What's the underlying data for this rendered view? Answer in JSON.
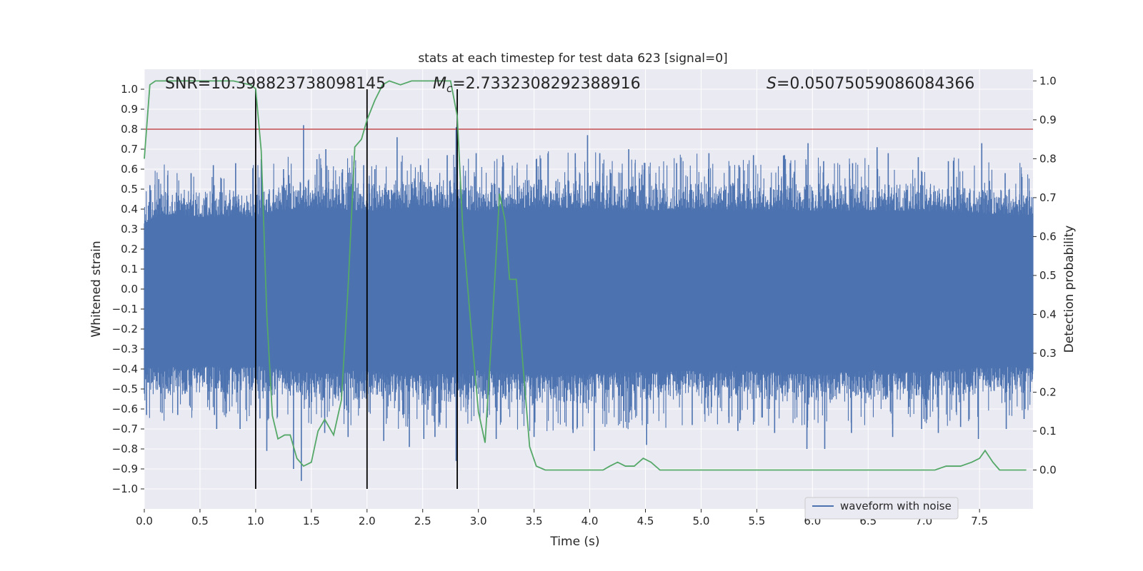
{
  "chart_data": {
    "type": "line",
    "title": "stats at each timestep for test data 623 [signal=0]",
    "xlabel": "Time (s)",
    "ylabel_left": "Whitened strain",
    "ylabel_right": "Detection probability",
    "xlim": [
      0.0,
      7.98
    ],
    "ylim_left": [
      -1.1,
      1.1
    ],
    "ylim_right": [
      -0.1,
      1.03
    ],
    "grid": true,
    "legend": {
      "placement": "lower-right",
      "entries": [
        "waveform with noise"
      ]
    },
    "x_ticks": [
      "0.0",
      "0.5",
      "1.0",
      "1.5",
      "2.0",
      "2.5",
      "3.0",
      "3.5",
      "4.0",
      "4.5",
      "5.0",
      "5.5",
      "6.0",
      "6.5",
      "7.0",
      "7.5"
    ],
    "y_ticks_left": [
      "1.0",
      "0.9",
      "0.8",
      "0.7",
      "0.6",
      "0.5",
      "0.4",
      "0.3",
      "0.2",
      "0.1",
      "0.0",
      "−0.1",
      "−0.2",
      "−0.3",
      "−0.4",
      "−0.5",
      "−0.6",
      "−0.7",
      "−0.8",
      "−0.9",
      "−1.0"
    ],
    "y_ticks_right": [
      "1.0",
      "0.9",
      "0.8",
      "0.7",
      "0.6",
      "0.5",
      "0.4",
      "0.3",
      "0.2",
      "0.1",
      "0.0"
    ],
    "annotations": {
      "snr": "SNR=10.398823738098145",
      "mc_symbol": "M",
      "mc_subscript": "c",
      "mc_value": "=2.7332308292388916",
      "s_symbol": "S",
      "s_value": "=0.05075059086084366"
    },
    "vertical_lines_x": [
      1.0,
      2.0,
      2.81
    ],
    "threshold_line": {
      "y": 0.8,
      "color": "#c44e52"
    },
    "waveform": {
      "name": "waveform with noise",
      "color": "#4c72b0",
      "envelope_upper": [
        [
          0.0,
          0.42
        ],
        [
          0.1,
          0.46
        ],
        [
          0.3,
          0.48
        ],
        [
          0.5,
          0.46
        ],
        [
          0.8,
          0.47
        ],
        [
          1.0,
          0.45
        ],
        [
          1.2,
          0.5
        ],
        [
          1.5,
          0.52
        ],
        [
          2.0,
          0.5
        ],
        [
          2.5,
          0.53
        ],
        [
          3.0,
          0.5
        ],
        [
          3.5,
          0.52
        ],
        [
          4.0,
          0.52
        ],
        [
          4.5,
          0.5
        ],
        [
          5.0,
          0.51
        ],
        [
          5.5,
          0.5
        ],
        [
          6.0,
          0.5
        ],
        [
          6.5,
          0.5
        ],
        [
          7.0,
          0.5
        ],
        [
          7.5,
          0.48
        ],
        [
          7.98,
          0.47
        ]
      ],
      "envelope_lower": [
        [
          0.0,
          -0.5
        ],
        [
          0.3,
          -0.5
        ],
        [
          0.5,
          -0.49
        ],
        [
          0.8,
          -0.5
        ],
        [
          1.0,
          -0.49
        ],
        [
          1.5,
          -0.54
        ],
        [
          2.0,
          -0.52
        ],
        [
          2.5,
          -0.55
        ],
        [
          3.0,
          -0.52
        ],
        [
          3.5,
          -0.55
        ],
        [
          4.0,
          -0.54
        ],
        [
          4.5,
          -0.53
        ],
        [
          5.0,
          -0.52
        ],
        [
          5.5,
          -0.52
        ],
        [
          6.0,
          -0.55
        ],
        [
          6.5,
          -0.52
        ],
        [
          7.0,
          -0.53
        ],
        [
          7.5,
          -0.5
        ],
        [
          7.98,
          -0.5
        ]
      ],
      "peaks": [
        [
          0.05,
          0.52
        ],
        [
          0.13,
          0.55
        ],
        [
          0.21,
          0.57
        ],
        [
          0.42,
          0.58
        ],
        [
          0.62,
          0.62
        ],
        [
          0.82,
          0.63
        ],
        [
          1.05,
          0.65
        ],
        [
          1.25,
          0.6
        ],
        [
          1.43,
          0.82
        ],
        [
          1.55,
          0.65
        ],
        [
          1.63,
          0.7
        ],
        [
          1.78,
          0.6
        ],
        [
          1.97,
          0.62
        ],
        [
          2.07,
          0.6
        ],
        [
          2.27,
          0.76
        ],
        [
          2.48,
          0.62
        ],
        [
          2.72,
          0.67
        ],
        [
          2.8,
          0.81
        ],
        [
          2.98,
          0.68
        ],
        [
          3.22,
          0.67
        ],
        [
          3.52,
          0.65
        ],
        [
          3.87,
          0.68
        ],
        [
          3.98,
          0.77
        ],
        [
          4.09,
          0.68
        ],
        [
          4.35,
          0.7
        ],
        [
          4.78,
          0.63
        ],
        [
          5.07,
          0.68
        ],
        [
          5.34,
          0.62
        ],
        [
          5.47,
          0.67
        ],
        [
          5.8,
          0.63
        ],
        [
          5.96,
          0.73
        ],
        [
          6.1,
          0.64
        ],
        [
          6.36,
          0.63
        ],
        [
          6.58,
          0.71
        ],
        [
          6.68,
          0.68
        ],
        [
          6.95,
          0.66
        ],
        [
          7.22,
          0.64
        ],
        [
          7.52,
          0.73
        ],
        [
          7.73,
          0.58
        ]
      ],
      "troughs": [
        [
          0.02,
          -0.63
        ],
        [
          0.16,
          -0.62
        ],
        [
          0.3,
          -0.63
        ],
        [
          0.63,
          -0.63
        ],
        [
          0.65,
          -0.7
        ],
        [
          0.86,
          -0.7
        ],
        [
          1.1,
          -0.81
        ],
        [
          1.34,
          -0.9
        ],
        [
          1.41,
          -0.96
        ],
        [
          1.62,
          -0.72
        ],
        [
          1.83,
          -0.74
        ],
        [
          2.15,
          -0.76
        ],
        [
          2.38,
          -0.79
        ],
        [
          2.51,
          -0.75
        ],
        [
          2.61,
          -0.74
        ],
        [
          2.8,
          -0.86
        ],
        [
          3.16,
          -0.75
        ],
        [
          3.5,
          -0.74
        ],
        [
          3.85,
          -0.72
        ],
        [
          4.04,
          -0.81
        ],
        [
          4.51,
          -0.78
        ],
        [
          4.92,
          -0.68
        ],
        [
          5.25,
          -0.67
        ],
        [
          5.33,
          -0.71
        ],
        [
          5.66,
          -0.72
        ],
        [
          5.95,
          -0.8
        ],
        [
          6.11,
          -0.8
        ],
        [
          6.35,
          -0.72
        ],
        [
          6.72,
          -0.74
        ],
        [
          6.98,
          -0.7
        ],
        [
          7.13,
          -0.72
        ],
        [
          7.33,
          -0.69
        ],
        [
          7.49,
          -0.75
        ],
        [
          7.74,
          -0.7
        ],
        [
          7.9,
          -0.65
        ]
      ]
    },
    "probability": {
      "color": "#55a868",
      "points": [
        [
          0.0,
          0.8
        ],
        [
          0.05,
          0.99
        ],
        [
          0.1,
          1.0
        ],
        [
          0.2,
          1.0
        ],
        [
          0.4,
          1.0
        ],
        [
          0.6,
          1.0
        ],
        [
          0.8,
          1.0
        ],
        [
          0.95,
          0.99
        ],
        [
          1.0,
          0.98
        ],
        [
          1.05,
          0.82
        ],
        [
          1.1,
          0.4
        ],
        [
          1.15,
          0.14
        ],
        [
          1.2,
          0.08
        ],
        [
          1.26,
          0.09
        ],
        [
          1.31,
          0.09
        ],
        [
          1.37,
          0.03
        ],
        [
          1.43,
          0.01
        ],
        [
          1.5,
          0.02
        ],
        [
          1.56,
          0.1
        ],
        [
          1.62,
          0.13
        ],
        [
          1.7,
          0.09
        ],
        [
          1.77,
          0.18
        ],
        [
          1.83,
          0.47
        ],
        [
          1.89,
          0.83
        ],
        [
          1.95,
          0.85
        ],
        [
          2.0,
          0.9
        ],
        [
          2.07,
          0.95
        ],
        [
          2.14,
          0.99
        ],
        [
          2.2,
          1.0
        ],
        [
          2.3,
          0.99
        ],
        [
          2.4,
          1.0
        ],
        [
          2.6,
          1.0
        ],
        [
          2.75,
          1.0
        ],
        [
          2.81,
          0.91
        ],
        [
          2.86,
          0.62
        ],
        [
          2.93,
          0.38
        ],
        [
          3.0,
          0.15
        ],
        [
          3.06,
          0.07
        ],
        [
          3.12,
          0.35
        ],
        [
          3.19,
          0.71
        ],
        [
          3.24,
          0.64
        ],
        [
          3.28,
          0.49
        ],
        [
          3.34,
          0.49
        ],
        [
          3.4,
          0.27
        ],
        [
          3.46,
          0.06
        ],
        [
          3.52,
          0.01
        ],
        [
          3.6,
          0.0
        ],
        [
          3.8,
          0.0
        ],
        [
          4.0,
          0.0
        ],
        [
          4.12,
          0.0
        ],
        [
          4.18,
          0.01
        ],
        [
          4.25,
          0.02
        ],
        [
          4.32,
          0.01
        ],
        [
          4.4,
          0.01
        ],
        [
          4.48,
          0.03
        ],
        [
          4.55,
          0.02
        ],
        [
          4.63,
          0.0
        ],
        [
          4.8,
          0.0
        ],
        [
          5.0,
          0.0
        ],
        [
          5.2,
          0.0
        ],
        [
          5.6,
          0.0
        ],
        [
          6.0,
          0.0
        ],
        [
          6.4,
          0.0
        ],
        [
          6.8,
          0.0
        ],
        [
          7.1,
          0.0
        ],
        [
          7.2,
          0.01
        ],
        [
          7.33,
          0.01
        ],
        [
          7.43,
          0.02
        ],
        [
          7.5,
          0.03
        ],
        [
          7.55,
          0.05
        ],
        [
          7.62,
          0.02
        ],
        [
          7.68,
          0.0
        ],
        [
          7.92,
          0.0
        ]
      ]
    }
  }
}
